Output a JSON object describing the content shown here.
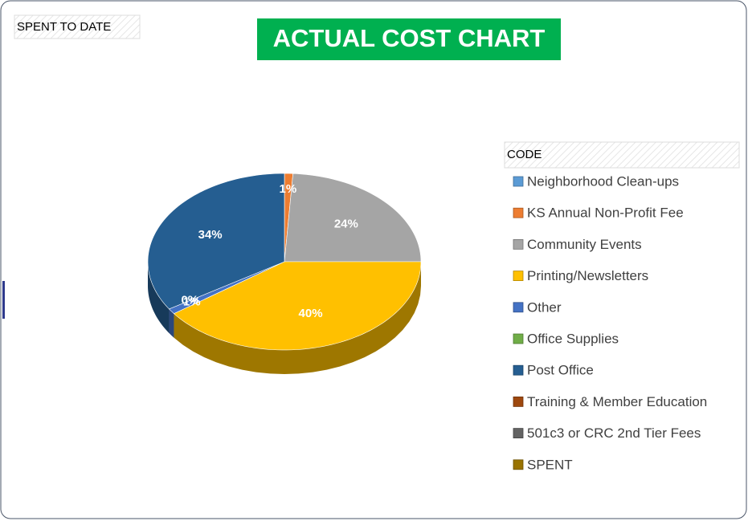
{
  "chart_data": {
    "type": "pie",
    "title": "ACTUAL COST CHART",
    "annotation": "SPENT TO DATE",
    "legend_title": "CODE",
    "legend_position": "right",
    "categories": [
      "Neighborhood Clean-ups",
      "KS Annual Non-Profit Fee",
      "Community Events",
      "Printing/Newsletters",
      "Other",
      "Office Supplies",
      "Post Office",
      "Training & Member Education",
      "501c3 or CRC 2nd Tier Fees",
      "SPENT"
    ],
    "values": [
      null,
      1,
      24,
      40,
      1,
      0,
      34,
      null,
      null,
      null
    ],
    "value_labels": [
      null,
      "1%",
      "24%",
      "40%",
      "1%",
      "0%",
      "34%",
      null,
      null,
      null
    ],
    "colors": [
      "#5b9bd5",
      "#ed7d31",
      "#a5a5a5",
      "#ffc000",
      "#4472c4",
      "#70ad47",
      "#255e91",
      "#9e480e",
      "#636363",
      "#997300"
    ]
  }
}
